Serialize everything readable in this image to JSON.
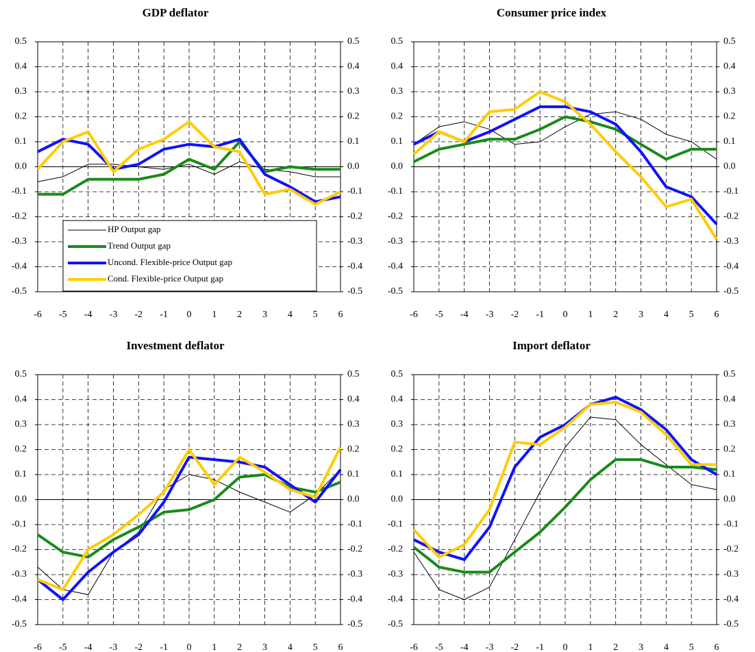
{
  "chart_data": [
    {
      "type": "line",
      "title": "GDP deflator",
      "x": [
        -6,
        -5,
        -4,
        -3,
        -2,
        -1,
        0,
        1,
        2,
        3,
        4,
        5,
        6
      ],
      "xlim": [
        -6,
        6
      ],
      "xticks": [
        -6,
        -5,
        -4,
        -3,
        -2,
        -1,
        0,
        1,
        2,
        3,
        4,
        5,
        6
      ],
      "ylim": [
        -0.5,
        0.5
      ],
      "yticks": [
        0.5,
        0.4,
        0.3,
        0.2,
        0.1,
        {
          "value": 0,
          "label": "0.0"
        },
        -0.1,
        -0.2,
        -0.3,
        -0.4,
        -0.5
      ],
      "y2lim": [
        -0.5,
        0.5
      ],
      "y2ticks": [
        0.5,
        0.4,
        0.3,
        0.2,
        0.1,
        {
          "value": 0,
          "label": "0.0"
        },
        -0.1,
        -0.2,
        -0.3,
        -0.4,
        -0.5
      ],
      "grid": true,
      "legend": "lower left",
      "series": [
        {
          "name": "HP Output gap",
          "color": "#000000",
          "values": [
            -0.06,
            -0.04,
            0.01,
            0.01,
            0.0,
            -0.01,
            0.01,
            -0.03,
            0.02,
            -0.01,
            -0.02,
            -0.04,
            -0.04
          ]
        },
        {
          "name": "Trend Output gap",
          "color": "#1a8a1a",
          "values": [
            -0.11,
            -0.11,
            -0.05,
            -0.05,
            -0.05,
            -0.03,
            0.03,
            -0.01,
            0.1,
            -0.02,
            0.0,
            -0.01,
            -0.01
          ]
        },
        {
          "name": "Uncond. Flexible-price Output gap",
          "color": "#1010ff",
          "values": [
            0.06,
            0.11,
            0.09,
            -0.01,
            0.01,
            0.07,
            0.09,
            0.08,
            0.11,
            -0.03,
            -0.08,
            -0.14,
            -0.12
          ]
        },
        {
          "name": "Cond. Flexible-price Output gap",
          "color": "#ffcc00",
          "values": [
            -0.01,
            0.1,
            0.14,
            -0.02,
            0.07,
            0.11,
            0.18,
            0.08,
            0.06,
            -0.11,
            -0.09,
            -0.15,
            -0.1
          ]
        }
      ]
    },
    {
      "type": "line",
      "title": "Consumer price index",
      "x": [
        -6,
        -5,
        -4,
        -3,
        -2,
        -1,
        0,
        1,
        2,
        3,
        4,
        5,
        6
      ],
      "xlim": [
        -6,
        6
      ],
      "xticks": [
        -6,
        -5,
        -4,
        -3,
        -2,
        -1,
        0,
        1,
        2,
        3,
        4,
        5,
        6
      ],
      "ylim": [
        -0.5,
        0.5
      ],
      "yticks": [
        0.5,
        0.4,
        0.3,
        0.2,
        0.1,
        {
          "value": 0,
          "label": "0.0"
        },
        -0.1,
        -0.2,
        -0.3,
        -0.4,
        -0.5
      ],
      "y2lim": [
        -0.5,
        0.5
      ],
      "y2ticks": [
        0.5,
        0.4,
        0.3,
        0.2,
        0.1,
        {
          "value": 0,
          "label": "0.0"
        },
        -0.1,
        -0.2,
        -0.3,
        -0.4,
        -0.5
      ],
      "grid": true,
      "series": [
        {
          "color": "#000000",
          "values": [
            0.09,
            0.16,
            0.18,
            0.15,
            0.09,
            0.1,
            0.16,
            0.21,
            0.22,
            0.19,
            0.13,
            0.1,
            0.03
          ]
        },
        {
          "color": "#1a8a1a",
          "values": [
            0.02,
            0.07,
            0.09,
            0.11,
            0.11,
            0.15,
            0.2,
            0.18,
            0.15,
            0.09,
            0.03,
            0.07,
            0.07
          ]
        },
        {
          "color": "#1010ff",
          "values": [
            0.09,
            0.14,
            0.1,
            0.14,
            0.19,
            0.24,
            0.24,
            0.22,
            0.17,
            0.06,
            -0.08,
            -0.12,
            -0.23
          ]
        },
        {
          "color": "#ffcc00",
          "values": [
            0.05,
            0.14,
            0.1,
            0.22,
            0.23,
            0.3,
            0.26,
            0.17,
            0.06,
            -0.04,
            -0.16,
            -0.13,
            -0.29
          ]
        }
      ]
    },
    {
      "type": "line",
      "title": "Investment deflator",
      "x": [
        -6,
        -5,
        -4,
        -3,
        -2,
        -1,
        0,
        1,
        2,
        3,
        4,
        5,
        6
      ],
      "xlim": [
        -6,
        6
      ],
      "xticks": [
        -6,
        -5,
        -4,
        -3,
        -2,
        -1,
        0,
        1,
        2,
        3,
        4,
        5,
        6
      ],
      "ylim": [
        -0.5,
        0.5
      ],
      "yticks": [
        0.5,
        0.4,
        0.3,
        0.2,
        0.1,
        {
          "value": 0,
          "label": "0.0"
        },
        -0.1,
        -0.2,
        -0.3,
        -0.4,
        -0.5
      ],
      "y2lim": [
        -0.5,
        0.5
      ],
      "y2ticks": [
        0.5,
        0.4,
        0.3,
        0.2,
        0.1,
        {
          "value": 0,
          "label": "0.0"
        },
        -0.1,
        -0.2,
        -0.3,
        -0.4,
        -0.5
      ],
      "grid": true,
      "series": [
        {
          "color": "#000000",
          "values": [
            -0.27,
            -0.36,
            -0.38,
            -0.21,
            -0.13,
            0.04,
            0.1,
            0.08,
            0.03,
            -0.01,
            -0.05,
            0.02,
            0.12
          ]
        },
        {
          "color": "#1a8a1a",
          "values": [
            -0.14,
            -0.21,
            -0.23,
            -0.16,
            -0.11,
            -0.05,
            -0.04,
            0.0,
            0.09,
            0.1,
            0.05,
            0.03,
            0.07
          ]
        },
        {
          "color": "#1010ff",
          "values": [
            -0.32,
            -0.4,
            -0.29,
            -0.21,
            -0.14,
            -0.01,
            0.17,
            0.16,
            0.15,
            0.13,
            0.06,
            -0.01,
            0.12
          ]
        },
        {
          "color": "#ffcc00",
          "values": [
            -0.32,
            -0.36,
            -0.2,
            -0.14,
            -0.06,
            0.03,
            0.2,
            0.06,
            0.17,
            0.11,
            0.04,
            0.01,
            0.21
          ]
        }
      ]
    },
    {
      "type": "line",
      "title": "Import deflator",
      "x": [
        -6,
        -5,
        -4,
        -3,
        -2,
        -1,
        0,
        1,
        2,
        3,
        4,
        5,
        6
      ],
      "xlim": [
        -6,
        6
      ],
      "xticks": [
        -6,
        -5,
        -4,
        -3,
        -2,
        -1,
        0,
        1,
        2,
        3,
        4,
        5,
        6
      ],
      "ylim": [
        -0.5,
        0.5
      ],
      "yticks": [
        0.5,
        0.4,
        0.3,
        0.2,
        0.1,
        {
          "value": 0,
          "label": "0.0"
        },
        -0.1,
        -0.2,
        -0.3,
        -0.4,
        -0.5
      ],
      "y2lim": [
        -0.5,
        0.5
      ],
      "y2ticks": [
        0.5,
        0.4,
        0.3,
        0.2,
        0.1,
        {
          "value": 0,
          "label": "0.0"
        },
        -0.1,
        -0.2,
        -0.3,
        -0.4,
        -0.5
      ],
      "grid": true,
      "series": [
        {
          "color": "#000000",
          "values": [
            -0.21,
            -0.36,
            -0.4,
            -0.35,
            -0.16,
            0.03,
            0.21,
            0.33,
            0.32,
            0.22,
            0.14,
            0.06,
            0.04
          ]
        },
        {
          "color": "#1a8a1a",
          "values": [
            -0.19,
            -0.27,
            -0.29,
            -0.29,
            -0.21,
            -0.13,
            -0.03,
            0.08,
            0.16,
            0.16,
            0.13,
            0.13,
            0.12
          ]
        },
        {
          "color": "#1010ff",
          "values": [
            -0.16,
            -0.21,
            -0.24,
            -0.11,
            0.13,
            0.25,
            0.3,
            0.38,
            0.41,
            0.36,
            0.28,
            0.16,
            0.1
          ]
        },
        {
          "color": "#ffcc00",
          "values": [
            -0.12,
            -0.23,
            -0.18,
            -0.04,
            0.23,
            0.22,
            0.29,
            0.38,
            0.39,
            0.35,
            0.26,
            0.14,
            0.14
          ]
        }
      ]
    }
  ]
}
